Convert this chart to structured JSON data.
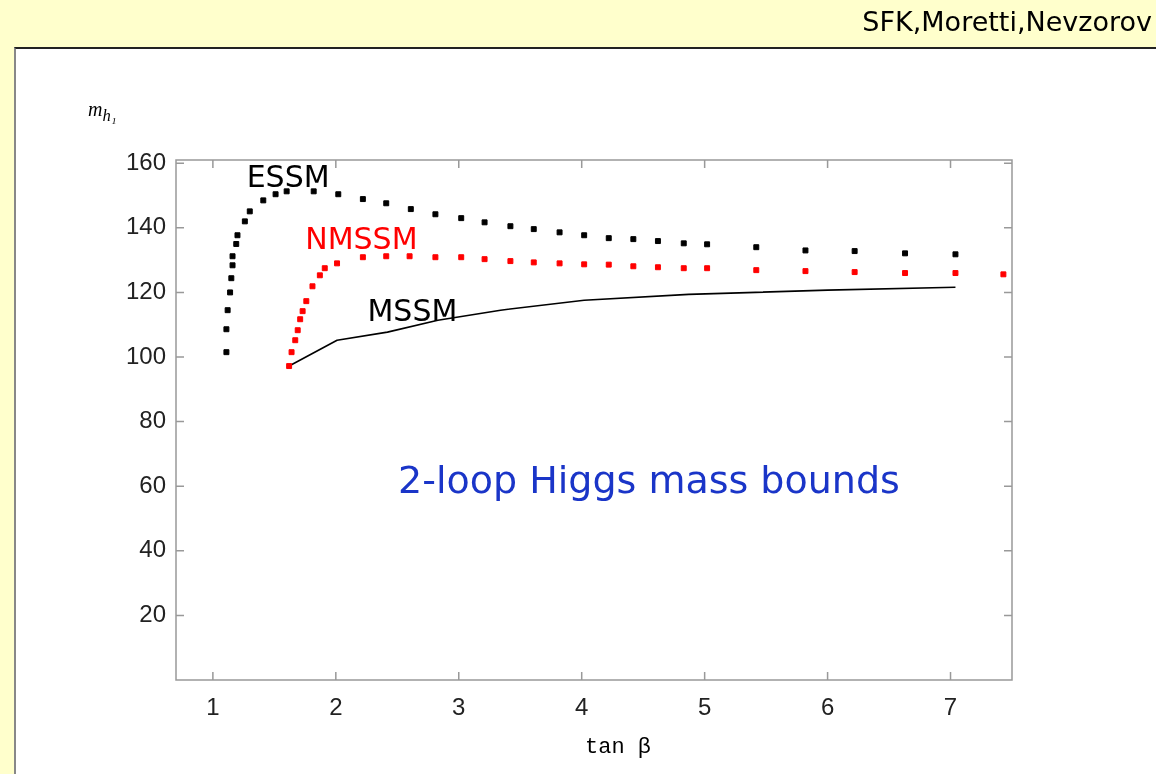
{
  "chart_data": {
    "type": "scatter",
    "xlabel": "tan β",
    "ylabel": "m$_{h₁}$",
    "annotations": [
      "2-loop Higgs mass bounds",
      "SFK,Moretti,Nevzorov"
    ],
    "xlim": [
      0.7,
      7.5
    ],
    "ylim": [
      0,
      161
    ],
    "xticks": [
      1,
      2,
      3,
      4,
      5,
      6,
      7
    ],
    "yticks": [
      20,
      40,
      60,
      80,
      100,
      120,
      140,
      160
    ],
    "grid": false,
    "legend": false,
    "marker": "square",
    "series": [
      {
        "name": "ESSM",
        "type": "scatter",
        "color": "#000000",
        "x": [
          1.11,
          1.11,
          1.12,
          1.14,
          1.15,
          1.16,
          1.16,
          1.19,
          1.2,
          1.26,
          1.3,
          1.41,
          1.51,
          1.6,
          1.82,
          2.02,
          2.22,
          2.41,
          2.61,
          2.81,
          3.02,
          3.21,
          3.42,
          3.61,
          3.82,
          4.02,
          4.22,
          4.42,
          4.62,
          4.83,
          5.02,
          5.42,
          5.82,
          6.22,
          6.63,
          7.04
        ],
        "values": [
          101.5,
          108.6,
          114.5,
          120,
          124.4,
          128.4,
          131.2,
          135,
          137.7,
          142,
          145.1,
          148.5,
          150.4,
          151.3,
          151.3,
          150.4,
          148.9,
          147.6,
          145.8,
          144.2,
          143,
          141.7,
          140.5,
          139.6,
          138.6,
          137.7,
          136.8,
          136.5,
          135.9,
          135.2,
          134.9,
          134,
          133,
          132.8,
          132.1,
          131.8
        ]
      },
      {
        "name": "NMSSM",
        "type": "scatter",
        "color": "#ff0000",
        "x": [
          1.62,
          1.64,
          1.67,
          1.69,
          1.71,
          1.73,
          1.76,
          1.81,
          1.87,
          1.91,
          2.01,
          2.22,
          2.41,
          2.6,
          2.81,
          3.02,
          3.21,
          3.42,
          3.61,
          3.82,
          4.02,
          4.22,
          4.42,
          4.62,
          4.83,
          5.02,
          5.42,
          5.82,
          6.22,
          6.63,
          7.04,
          7.43
        ],
        "values": [
          97.2,
          101.5,
          105.2,
          108.3,
          111.7,
          114.2,
          117.3,
          121.9,
          125.3,
          127.5,
          129,
          130.9,
          131.2,
          131.2,
          130.9,
          130.9,
          130.3,
          129.7,
          129.3,
          129,
          128.7,
          128.6,
          128.1,
          127.8,
          127.5,
          127.5,
          126.9,
          126.6,
          126.3,
          126,
          126,
          125.6
        ]
      },
      {
        "name": "MSSM",
        "type": "line",
        "marker": "none",
        "color": "#000000",
        "x": [
          1.62,
          2.01,
          2.42,
          2.83,
          3.34,
          4.02,
          4.87,
          6.0,
          7.04
        ],
        "values": [
          97.2,
          105.2,
          107.7,
          111.4,
          114.5,
          117.6,
          119.4,
          120.7,
          121.6
        ]
      }
    ]
  }
}
